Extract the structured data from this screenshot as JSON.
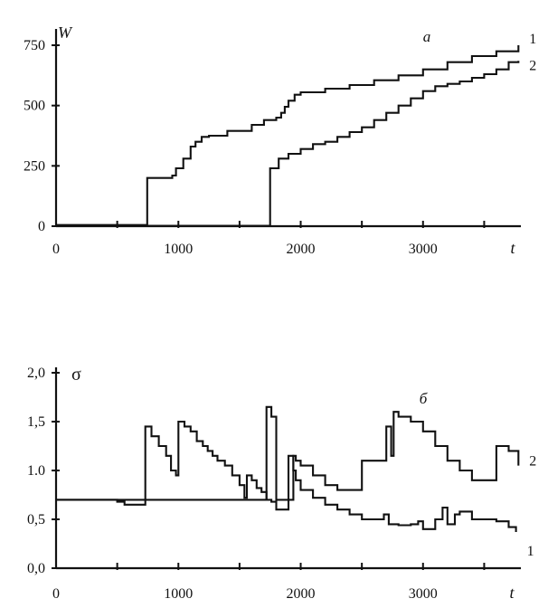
{
  "chart_data": [
    {
      "type": "line",
      "panel_label": "a",
      "ylabel": "W",
      "xlabel": "t",
      "xlim": [
        0,
        3800
      ],
      "ylim": [
        0,
        750
      ],
      "x_ticks": [
        0,
        1000,
        2000,
        3000
      ],
      "y_ticks": [
        0,
        250,
        500,
        750
      ],
      "x_tick_labels": [
        "0",
        "1000",
        "2000",
        "3000"
      ],
      "y_tick_labels": [
        "0",
        "250",
        "500",
        "750"
      ],
      "series": [
        {
          "name": "1",
          "x": [
            0,
            740,
            745,
            950,
            980,
            1040,
            1100,
            1140,
            1190,
            1250,
            1400,
            1600,
            1700,
            1800,
            1840,
            1870,
            1900,
            1950,
            2000,
            2200,
            2400,
            2600,
            2800,
            3000,
            3200,
            3400,
            3600,
            3780
          ],
          "y": [
            5,
            5,
            200,
            210,
            240,
            280,
            330,
            350,
            370,
            375,
            395,
            420,
            440,
            450,
            470,
            495,
            520,
            545,
            555,
            570,
            585,
            605,
            625,
            650,
            680,
            705,
            725,
            750
          ]
        },
        {
          "name": "2",
          "x": [
            0,
            1740,
            1750,
            1820,
            1900,
            2000,
            2100,
            2200,
            2300,
            2400,
            2500,
            2600,
            2700,
            2800,
            2900,
            3000,
            3100,
            3200,
            3300,
            3400,
            3500,
            3600,
            3700,
            3780
          ],
          "y": [
            2,
            2,
            240,
            280,
            300,
            320,
            340,
            350,
            370,
            390,
            410,
            440,
            470,
            500,
            530,
            560,
            580,
            590,
            600,
            615,
            630,
            650,
            680,
            685
          ]
        }
      ]
    },
    {
      "type": "line",
      "panel_label": "б",
      "ylabel": "σ",
      "xlabel": "t",
      "xlim": [
        0,
        3800
      ],
      "ylim": [
        0,
        2.0
      ],
      "x_ticks": [
        0,
        1000,
        2000,
        3000
      ],
      "y_ticks": [
        0,
        0.5,
        1.0,
        1.5,
        2.0
      ],
      "x_tick_labels": [
        "0",
        "1000",
        "2000",
        "3000"
      ],
      "y_tick_labels": [
        "0,0",
        "0,5",
        "1.0",
        "1,5",
        "2,0"
      ],
      "series": [
        {
          "name": "1",
          "x": [
            0,
            480,
            500,
            560,
            720,
            730,
            780,
            840,
            900,
            940,
            980,
            1000,
            1050,
            1100,
            1150,
            1200,
            1240,
            1280,
            1320,
            1380,
            1440,
            1500,
            1540,
            1560,
            1600,
            1640,
            1680,
            1720,
            1760,
            1800,
            1860,
            1900,
            1940,
            1960,
            2000,
            2100,
            2200,
            2300,
            2400,
            2500,
            2600,
            2680,
            2720,
            2800,
            2900,
            2960,
            3000,
            3100,
            3160,
            3200,
            3260,
            3300,
            3400,
            3500,
            3600,
            3700,
            3760
          ],
          "y": [
            0.7,
            0.7,
            0.68,
            0.65,
            0.65,
            1.45,
            1.35,
            1.25,
            1.15,
            1.0,
            0.95,
            1.5,
            1.45,
            1.4,
            1.3,
            1.25,
            1.2,
            1.15,
            1.1,
            1.05,
            0.95,
            0.85,
            0.72,
            0.95,
            0.9,
            0.82,
            0.78,
            0.7,
            0.68,
            0.6,
            0.6,
            1.15,
            1.0,
            0.9,
            0.8,
            0.72,
            0.65,
            0.6,
            0.55,
            0.5,
            0.5,
            0.55,
            0.45,
            0.44,
            0.45,
            0.48,
            0.4,
            0.5,
            0.62,
            0.45,
            0.55,
            0.58,
            0.5,
            0.5,
            0.48,
            0.42,
            0.37
          ]
        },
        {
          "name": "2",
          "x": [
            0,
            1700,
            1720,
            1760,
            1800,
            1900,
            1940,
            1960,
            2000,
            2100,
            2200,
            2300,
            2400,
            2500,
            2600,
            2700,
            2740,
            2760,
            2800,
            2900,
            3000,
            3100,
            3200,
            3300,
            3400,
            3500,
            3600,
            3700,
            3780
          ],
          "y": [
            0.7,
            0.7,
            1.65,
            1.55,
            0.7,
            0.7,
            1.15,
            1.1,
            1.05,
            0.95,
            0.85,
            0.8,
            0.8,
            1.1,
            1.1,
            1.45,
            1.15,
            1.6,
            1.55,
            1.5,
            1.4,
            1.25,
            1.1,
            1.0,
            0.9,
            0.9,
            1.25,
            1.2,
            1.05
          ]
        }
      ]
    }
  ]
}
